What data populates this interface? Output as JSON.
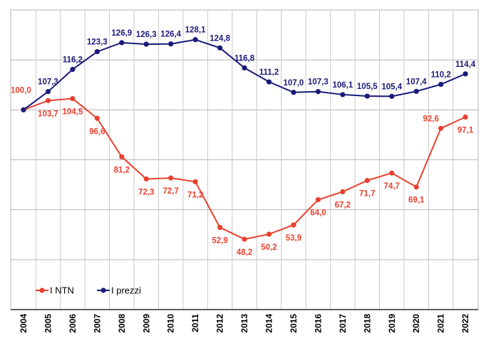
{
  "chart_data": {
    "type": "line",
    "title": "",
    "xlabel": "",
    "ylabel": "",
    "ylim": [
      20,
      140
    ],
    "grid": true,
    "legend_placement": "bottom-left",
    "x": [
      "2004",
      "2005",
      "2006",
      "2007",
      "2008",
      "2009",
      "2010",
      "2011",
      "2012",
      "2013",
      "2014",
      "2015",
      "2016",
      "2017",
      "2018",
      "2019",
      "2020",
      "2021",
      "2022"
    ],
    "series": [
      {
        "name": "I NTN",
        "color": "#e8412f",
        "values": [
          100.0,
          103.7,
          104.5,
          96.6,
          81.2,
          72.3,
          72.7,
          71.2,
          52.9,
          48.2,
          50.2,
          53.9,
          64.0,
          67.2,
          71.7,
          74.7,
          69.1,
          92.6,
          97.1
        ],
        "labels": [
          "100,0",
          "103,7",
          "104,5",
          "96,6",
          "81,2",
          "72,3",
          "72,7",
          "71,2",
          "52,9",
          "48,2",
          "50,2",
          "53,9",
          "64,0",
          "67,2",
          "71,7",
          "74,7",
          "69,1",
          "92,6",
          "97,1"
        ]
      },
      {
        "name": "I prezzi",
        "color": "#1a1a7a",
        "values": [
          100.0,
          107.3,
          116.2,
          123.3,
          126.9,
          126.3,
          126.4,
          128.1,
          124.8,
          116.8,
          111.2,
          107.0,
          107.3,
          106.1,
          105.5,
          105.4,
          107.4,
          110.2,
          114.4
        ],
        "labels": [
          "100,0",
          "107,3",
          "116,2",
          "123,3",
          "126,9",
          "126,3",
          "126,4",
          "128,1",
          "124,8",
          "116,8",
          "111,2",
          "107,0",
          "107,3",
          "106,1",
          "105,5",
          "105,4",
          "107,4",
          "110,2",
          "114,4"
        ]
      }
    ]
  }
}
